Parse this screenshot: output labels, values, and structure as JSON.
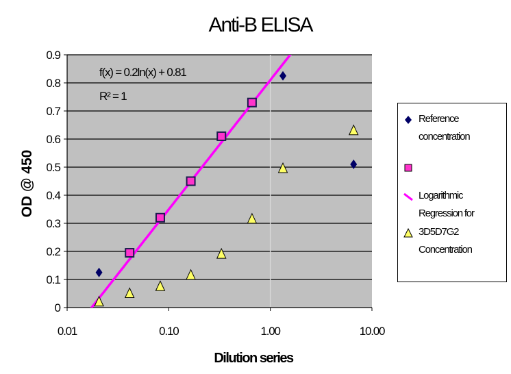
{
  "chart_data": {
    "type": "scatter",
    "title": "Anti-B ELISA",
    "xlabel": "Dilution series",
    "ylabel": "OD @ 450",
    "x_scale": "log",
    "xlim": [
      0.01,
      10
    ],
    "ylim": [
      0,
      0.9
    ],
    "x_ticks": [
      "0.01",
      "0.10",
      "1.00",
      "10.00"
    ],
    "y_ticks": [
      "0",
      "0.1",
      "0.2",
      "0.3",
      "0.4",
      "0.5",
      "0.6",
      "0.7",
      "0.8",
      "0.9"
    ],
    "grid": "horizontal",
    "background": "#c0c0c0",
    "legend_position": "right",
    "series": [
      {
        "name": "Reference concentration",
        "marker": "diamond",
        "color": "#000066",
        "points": [
          [
            0.0206,
            0.125
          ],
          [
            1.33,
            0.825
          ],
          [
            6.6,
            0.51
          ]
        ]
      },
      {
        "name": "",
        "marker": "square",
        "color": "#ff33cc",
        "points": [
          [
            0.0412,
            0.195
          ],
          [
            0.0825,
            0.32
          ],
          [
            0.165,
            0.45
          ],
          [
            0.33,
            0.61
          ],
          [
            0.66,
            0.73
          ]
        ]
      },
      {
        "name": "3D5D7G2 Concentration",
        "marker": "triangle",
        "color": "#ffff66",
        "points": [
          [
            0.0206,
            0.02
          ],
          [
            0.0412,
            0.05
          ],
          [
            0.0825,
            0.075
          ],
          [
            0.165,
            0.115
          ],
          [
            0.33,
            0.19
          ],
          [
            0.66,
            0.315
          ],
          [
            1.33,
            0.495
          ],
          [
            6.6,
            0.63
          ]
        ]
      }
    ],
    "trendline": {
      "name": "Logarithmic Regression for",
      "color": "#ff00ff",
      "a": 0.2,
      "b": 0.81
    },
    "annotations": [
      "f(x) = 0.2ln(x) + 0.81",
      "R² = 1"
    ]
  },
  "legend": {
    "reference": "Reference concentration",
    "blank": "",
    "regression": "Logarithmic Regression for",
    "concentration": "3D5D7G2 Concentration"
  }
}
